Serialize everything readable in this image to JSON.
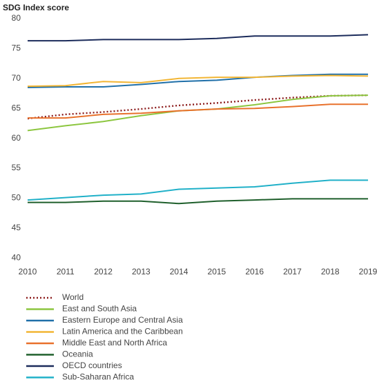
{
  "chart_data": {
    "type": "line",
    "title": "SDG Index score",
    "x": [
      2010,
      2011,
      2012,
      2013,
      2014,
      2015,
      2016,
      2017,
      2018,
      2019
    ],
    "xlim": [
      2010,
      2019
    ],
    "xticks": [
      2010,
      2011,
      2012,
      2013,
      2014,
      2015,
      2016,
      2017,
      2018,
      2019
    ],
    "ylim": [
      39,
      80
    ],
    "yticks": [
      40,
      45,
      50,
      55,
      60,
      65,
      70,
      75,
      80
    ],
    "series": [
      {
        "name": "World",
        "color": "#8b1a1a",
        "style": "dotted",
        "values": [
          63.3,
          64.0,
          64.4,
          64.9,
          65.5,
          65.9,
          66.4,
          66.8,
          67.1,
          67.2
        ]
      },
      {
        "name": "East and South Asia",
        "color": "#8cc63f",
        "values": [
          61.3,
          62.1,
          62.8,
          63.8,
          64.6,
          64.9,
          65.6,
          66.5,
          67.1,
          67.2
        ]
      },
      {
        "name": "Eastern Europe and Central Asia",
        "color": "#1f6fa8",
        "values": [
          68.5,
          68.6,
          68.6,
          69.0,
          69.5,
          69.7,
          70.2,
          70.5,
          70.7,
          70.7
        ]
      },
      {
        "name": "Latin America and the Caribbean",
        "color": "#f2b533",
        "values": [
          68.7,
          68.8,
          69.5,
          69.3,
          70.0,
          70.2,
          70.2,
          70.4,
          70.5,
          70.4
        ]
      },
      {
        "name": "Middle East and North Africa",
        "color": "#e8702a",
        "values": [
          63.4,
          63.4,
          64.0,
          64.2,
          64.6,
          64.9,
          65.0,
          65.3,
          65.7,
          65.7
        ]
      },
      {
        "name": "Oceania",
        "color": "#1d5e2a",
        "values": [
          49.3,
          49.3,
          49.5,
          49.5,
          49.1,
          49.5,
          49.7,
          49.9,
          49.9,
          49.9
        ]
      },
      {
        "name": "OECD countries",
        "color": "#1a2a5a",
        "values": [
          76.3,
          76.3,
          76.5,
          76.5,
          76.5,
          76.7,
          77.1,
          77.1,
          77.1,
          77.3
        ]
      },
      {
        "name": "Sub-Saharan Africa",
        "color": "#1fb0c8",
        "values": [
          49.7,
          50.1,
          50.5,
          50.7,
          51.5,
          51.7,
          51.9,
          52.5,
          53.0,
          53.0
        ]
      }
    ]
  }
}
